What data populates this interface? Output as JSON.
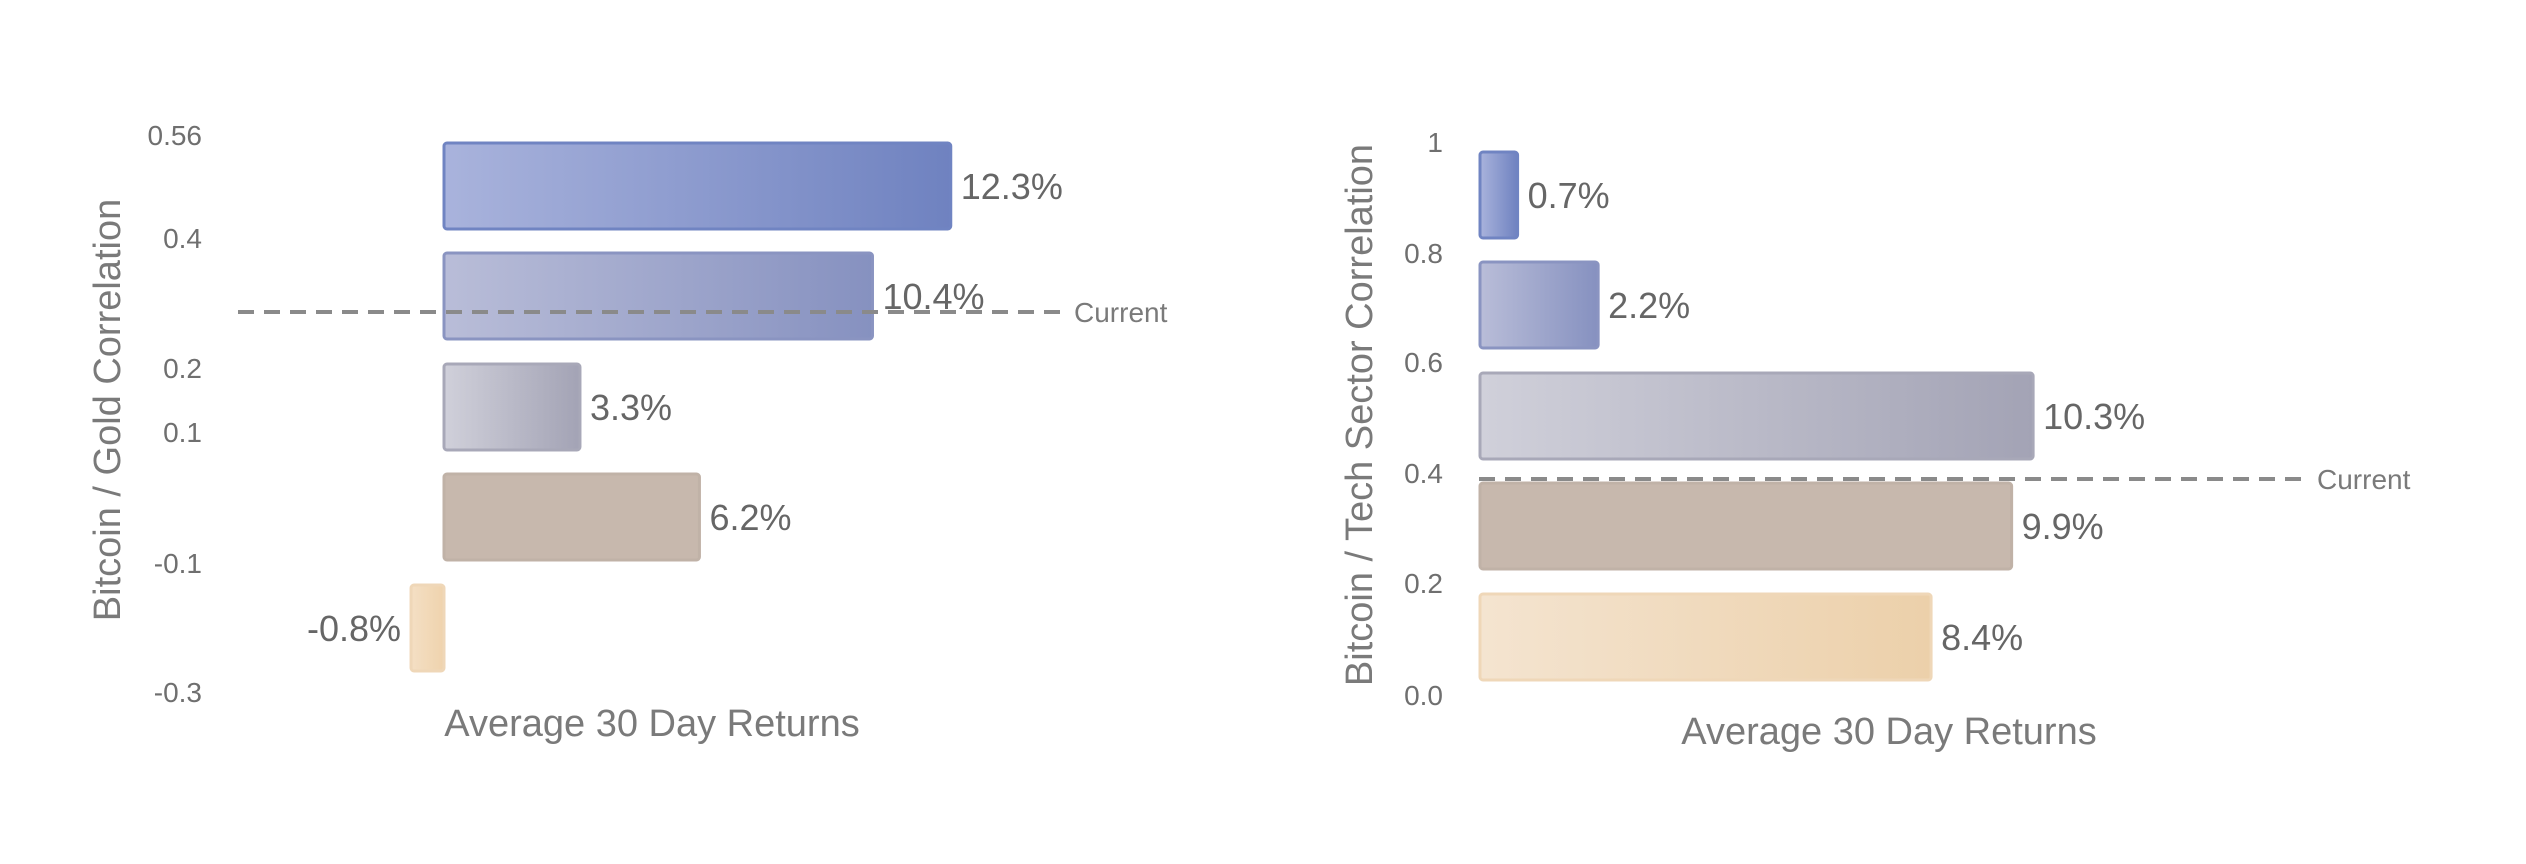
{
  "chart_data": [
    {
      "type": "bar",
      "orientation": "horizontal",
      "ylabel": "Bitcoin / Gold Correlation",
      "xlabel": "Average 30 Day Returns",
      "y_tick_labels": [
        "0.56",
        "0.4",
        "0.2",
        "0.1",
        "-0.1",
        "-0.3"
      ],
      "values": [
        12.3,
        10.4,
        3.3,
        6.2,
        -0.8
      ],
      "value_labels": [
        "12.3%",
        "10.4%",
        "3.3%",
        "6.2%",
        "-0.8%"
      ],
      "reference_line": {
        "label": "Current"
      },
      "colors": {
        "bars": [
          [
            "#a9b3dc",
            "#6f82c0"
          ],
          [
            "#b9bdd8",
            "#8691c0"
          ],
          [
            "#d0d0da",
            "#a3a3b5"
          ],
          [
            "#c7b8ad",
            "#c7b8ad"
          ],
          [
            "#f4dfc4",
            "#efd3ad"
          ]
        ],
        "edges": [
          "#7084c2",
          "#8a94c1",
          "#a8a8b8",
          "#c0b2a7",
          "#efd7b8"
        ],
        "reference_line": "#8a8a8a"
      }
    },
    {
      "type": "bar",
      "orientation": "horizontal",
      "ylabel": "Bitcoin / Tech Sector Correlation",
      "xlabel": "Average 30 Day Returns",
      "y_tick_labels": [
        "1",
        "0.8",
        "0.6",
        "0.4",
        "0.2",
        "0.0"
      ],
      "values": [
        0.7,
        2.2,
        10.3,
        9.9,
        8.4
      ],
      "value_labels": [
        "0.7%",
        "2.2%",
        "10.3%",
        "9.9%",
        "8.4%"
      ],
      "reference_line": {
        "label": "Current"
      },
      "colors": {
        "bars": [
          [
            "#a9b3dc",
            "#6f82c0"
          ],
          [
            "#b9bdd8",
            "#8691c0"
          ],
          [
            "#d0d0da",
            "#a3a3b5"
          ],
          [
            "#c7b8ad",
            "#c7b8ad"
          ],
          [
            "#f4e4d0",
            "#ecd0aa"
          ]
        ],
        "edges": [
          "#7084c2",
          "#8a94c1",
          "#a8a8b8",
          "#c0b2a7",
          "#efd7b8"
        ],
        "reference_line": "#8a8a8a"
      }
    }
  ]
}
